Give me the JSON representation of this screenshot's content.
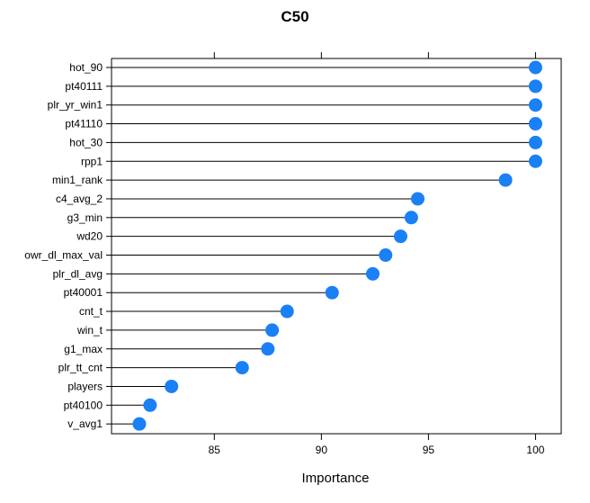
{
  "chart_data": {
    "type": "lollipop",
    "title": "C50",
    "xlabel": "Importance",
    "ylabel": "",
    "xlim": [
      80.2,
      101.2
    ],
    "x_ticks": [
      85,
      90,
      95,
      100
    ],
    "grid": false,
    "legend": "none",
    "point_color": "#1a80f5",
    "categories": [
      "hot_90",
      "pt40111",
      "plr_yr_win1",
      "pt41110",
      "hot_30",
      "rpp1",
      "min1_rank",
      "c4_avg_2",
      "g3_min",
      "wd20",
      "owr_dl_max_val",
      "plr_dl_avg",
      "pt40001",
      "cnt_t",
      "win_t",
      "g1_max",
      "plr_tt_cnt",
      "players",
      "pt40100",
      "v_avg1"
    ],
    "values": [
      100,
      100,
      100,
      100,
      100,
      100,
      98.6,
      94.5,
      94.2,
      93.7,
      93.0,
      92.4,
      90.5,
      88.4,
      87.7,
      87.5,
      86.3,
      83.0,
      82.0,
      81.5
    ]
  }
}
